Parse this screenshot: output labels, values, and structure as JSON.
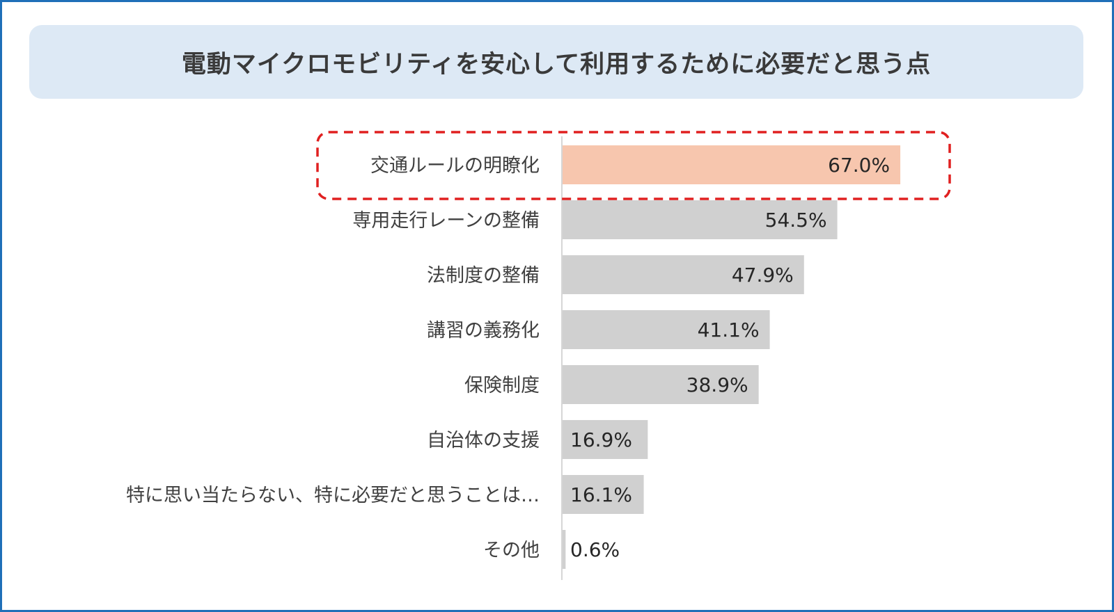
{
  "chart_data": {
    "type": "bar",
    "orientation": "horizontal",
    "title": "電動マイクロモビリティを安心して利用するために必要だと思う点",
    "xlabel": "",
    "ylabel": "",
    "xlim": [
      0,
      100
    ],
    "grid": false,
    "legend": "none",
    "categories": [
      "交通ルールの明瞭化",
      "専用走行レーンの整備",
      "法制度の整備",
      "講習の義務化",
      "保険制度",
      "自治体の支援",
      "特に思い当たらない、特に必要だと思うことは…",
      "その他"
    ],
    "values": [
      67.0,
      54.5,
      47.9,
      41.1,
      38.9,
      16.9,
      16.1,
      0.6
    ],
    "value_labels": [
      "67.0%",
      "54.5%",
      "47.9%",
      "41.1%",
      "38.9%",
      "16.9%",
      "16.1%",
      "0.6%"
    ],
    "highlight_index": 0,
    "colors": {
      "bar": "#d0d0d0",
      "highlight_bar": "#f7c6ae",
      "highlight_label": "#e02020",
      "highlight_box": "#e02020",
      "axis": "#c8c8c8"
    }
  }
}
